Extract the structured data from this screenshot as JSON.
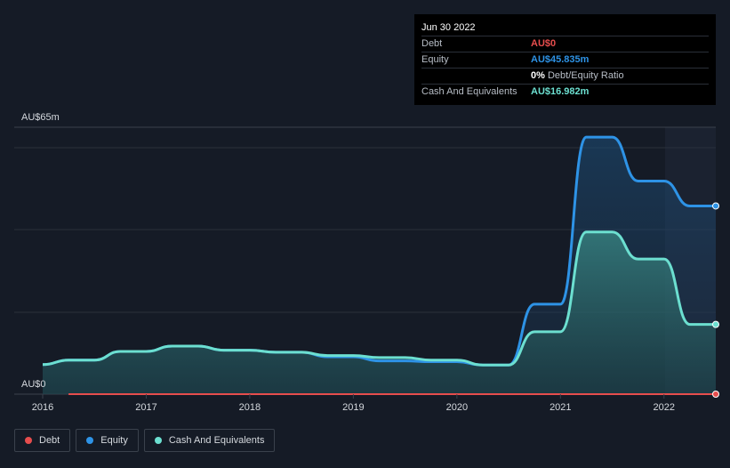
{
  "tooltip": {
    "date": "Jun 30 2022",
    "rows": [
      {
        "label": "Debt",
        "value": "AU$0",
        "color": "#e64d4d"
      },
      {
        "label": "Equity",
        "value": "AU$45.835m",
        "color": "#2e93e6"
      },
      {
        "label": "",
        "value": "0%",
        "unit": "Debt/Equity Ratio",
        "color": "#ffffff"
      },
      {
        "label": "Cash And Equivalents",
        "value": "AU$16.982m",
        "color": "#6cdfd0"
      }
    ]
  },
  "legend": [
    {
      "label": "Debt",
      "color": "#e64d4d"
    },
    {
      "label": "Equity",
      "color": "#2e93e6"
    },
    {
      "label": "Cash And Equivalents",
      "color": "#6cdfd0"
    }
  ],
  "chart_data": {
    "type": "area",
    "ylim": [
      0,
      65
    ],
    "y_top_label": "AU$65m",
    "y_bottom_label": "AU$0",
    "x_ticks": [
      "2016",
      "2017",
      "2018",
      "2019",
      "2020",
      "2021",
      "2022"
    ],
    "xlim": [
      2016.0,
      2022.5
    ],
    "series": [
      {
        "name": "Debt",
        "color": "#e64d4d",
        "x": [
          2016.25,
          2022.5
        ],
        "y": [
          0,
          0
        ]
      },
      {
        "name": "Equity",
        "color": "#2e93e6",
        "x": [
          2016.0,
          2016.25,
          2016.5,
          2016.75,
          2017.0,
          2017.25,
          2017.5,
          2017.75,
          2018.0,
          2018.25,
          2018.5,
          2018.75,
          2019.0,
          2019.25,
          2019.5,
          2019.75,
          2020.0,
          2020.25,
          2020.5,
          2020.75,
          2021.0,
          2021.25,
          2021.5,
          2021.75,
          2022.0,
          2022.25,
          2022.5
        ],
        "y": [
          7.2,
          8.3,
          8.3,
          10.4,
          10.4,
          11.7,
          11.7,
          10.7,
          10.7,
          10.2,
          10.2,
          9.1,
          9.1,
          8.1,
          8.1,
          7.9,
          7.9,
          7.1,
          7.1,
          21.9,
          21.9,
          62.6,
          62.6,
          51.9,
          51.9,
          45.835,
          45.835
        ]
      },
      {
        "name": "Cash And Equivalents",
        "color": "#6cdfd0",
        "x": [
          2016.0,
          2016.25,
          2016.5,
          2016.75,
          2017.0,
          2017.25,
          2017.5,
          2017.75,
          2018.0,
          2018.25,
          2018.5,
          2018.75,
          2019.0,
          2019.25,
          2019.5,
          2019.75,
          2020.0,
          2020.25,
          2020.5,
          2020.75,
          2021.0,
          2021.25,
          2021.5,
          2021.75,
          2022.0,
          2022.25,
          2022.5
        ],
        "y": [
          7.2,
          8.3,
          8.3,
          10.4,
          10.4,
          11.7,
          11.7,
          10.7,
          10.7,
          10.2,
          10.2,
          9.4,
          9.4,
          8.9,
          8.9,
          8.3,
          8.3,
          7.1,
          7.1,
          15.2,
          15.2,
          39.5,
          39.5,
          32.9,
          32.9,
          16.982,
          16.982
        ]
      }
    ]
  }
}
